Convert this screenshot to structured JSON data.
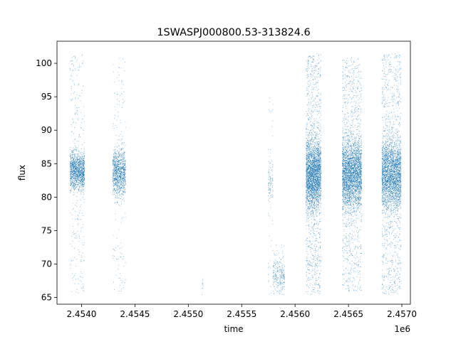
{
  "chart_data": {
    "type": "scatter",
    "title": "1SWASPJ000800.53-313824.6",
    "xlabel": "time",
    "ylabel": "flux",
    "x_offset_label": "1e6",
    "xlim": [
      2453770,
      2457080
    ],
    "ylim": [
      64,
      103.3
    ],
    "x_ticks": [
      {
        "value": 2454000,
        "label": "2.4540"
      },
      {
        "value": 2454500,
        "label": "2.4545"
      },
      {
        "value": 2455000,
        "label": "2.4550"
      },
      {
        "value": 2455500,
        "label": "2.4555"
      },
      {
        "value": 2456000,
        "label": "2.4560"
      },
      {
        "value": 2456500,
        "label": "2.4565"
      },
      {
        "value": 2457000,
        "label": "2.4570"
      }
    ],
    "y_ticks": [
      {
        "value": 65,
        "label": "65"
      },
      {
        "value": 70,
        "label": "70"
      },
      {
        "value": 75,
        "label": "75"
      },
      {
        "value": 80,
        "label": "80"
      },
      {
        "value": 85,
        "label": "85"
      },
      {
        "value": 90,
        "label": "90"
      },
      {
        "value": 95,
        "label": "95"
      },
      {
        "value": 100,
        "label": "100"
      }
    ],
    "grid": false,
    "legend": "none",
    "marker_color": "#1f77b4",
    "series": [
      {
        "clusters": [
          {
            "t_start": 2453890,
            "t_end": 2454025,
            "core_low": 81,
            "core_high": 87,
            "tail_low": 65.5,
            "tail_high": 101.5,
            "core_points": 1200,
            "tail_points": 260
          },
          {
            "t_start": 2454290,
            "t_end": 2454410,
            "core_low": 80,
            "core_high": 87.5,
            "tail_low": 65.5,
            "tail_high": 101,
            "core_points": 1000,
            "tail_points": 140
          },
          {
            "t_start": 2455125,
            "t_end": 2455135,
            "core_low": 65.5,
            "core_high": 68,
            "tail_low": 65.5,
            "tail_high": 68,
            "core_points": 10,
            "tail_points": 0
          },
          {
            "t_start": 2455745,
            "t_end": 2455790,
            "core_low": 78,
            "core_high": 86.5,
            "tail_low": 65.5,
            "tail_high": 95,
            "core_points": 70,
            "tail_points": 50
          },
          {
            "t_start": 2455790,
            "t_end": 2455900,
            "core_low": 65.5,
            "core_high": 71,
            "tail_low": 65.5,
            "tail_high": 73,
            "core_points": 200,
            "tail_points": 40
          },
          {
            "t_start": 2456100,
            "t_end": 2456240,
            "core_low": 78,
            "core_high": 89,
            "tail_low": 65.5,
            "tail_high": 101.5,
            "core_points": 2400,
            "tail_points": 900
          },
          {
            "t_start": 2456440,
            "t_end": 2456620,
            "core_low": 78,
            "core_high": 89,
            "tail_low": 66,
            "tail_high": 101,
            "core_points": 2600,
            "tail_points": 900
          },
          {
            "t_start": 2456810,
            "t_end": 2456990,
            "core_low": 78,
            "core_high": 89,
            "tail_low": 65.5,
            "tail_high": 101.5,
            "core_points": 2400,
            "tail_points": 900
          }
        ]
      }
    ]
  }
}
